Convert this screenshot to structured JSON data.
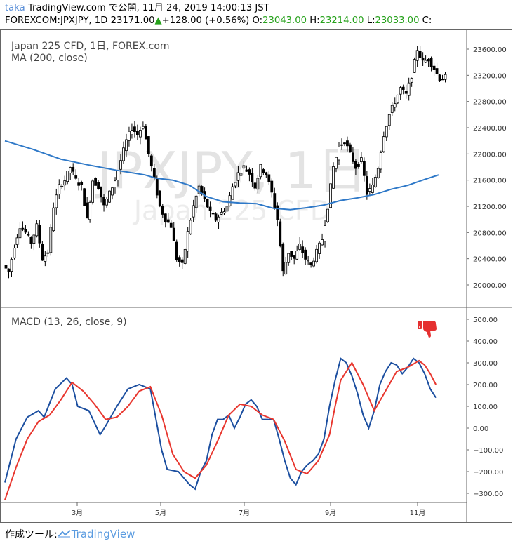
{
  "header": {
    "author": "taka",
    "line1_rest": " TradingView.com で公開, 11月 24, 2019 14:00:13 JST",
    "symbol": "FOREXCOM:JPXJPY, 1D",
    "last_price": "23171.00",
    "change_arrow": "▲",
    "change": "+128.00 (+0.56%)",
    "open_label": "O:",
    "open": "23043.00",
    "high_label": "H:",
    "high": "23214.00",
    "low_label": "L:",
    "low": "23033.00",
    "close_label": "C:"
  },
  "main_pane": {
    "title": "Japan 225 CFD, 1日, FOREX.com",
    "ma_label": "MA (200, close)",
    "watermark_symbol": "JPXJPY, 1日",
    "watermark_name": "Japan 225 CFD",
    "price_ticks": [
      "23600.00",
      "23200.00",
      "22800.00",
      "22400.00",
      "22000.00",
      "21600.00",
      "21200.00",
      "20800.00",
      "20400.00",
      "20000.00"
    ]
  },
  "macd_pane": {
    "label": "MACD (13, 26, close, 9)",
    "ticks": [
      "500.00",
      "400.00",
      "300.00",
      "200.00",
      "100.00",
      "0.00",
      "−100.00",
      "−200.00",
      "−300.00"
    ],
    "signal_icon": "thumbs-down-icon"
  },
  "time_axis": {
    "labels": [
      "3月",
      "5月",
      "7月",
      "9月",
      "11月"
    ]
  },
  "footer": {
    "prefix": "作成ツール:",
    "brand": "TradingView"
  },
  "colors": {
    "candle": "#000000",
    "ma": "#2f79c8",
    "macd": "#1c4fa0",
    "signal": "#e8362e",
    "value_green": "#26a11b",
    "thumbs_down": "#e53030"
  },
  "chart_data": {
    "type": "candlestick",
    "price_range": [
      19850,
      23850
    ],
    "macd_range": [
      -330,
      530
    ],
    "price_path": [
      [
        0,
        20300
      ],
      [
        2,
        20200
      ],
      [
        4,
        20600
      ],
      [
        6,
        20900
      ],
      [
        8,
        20800
      ],
      [
        10,
        20650
      ],
      [
        12,
        20900
      ],
      [
        14,
        20400
      ],
      [
        16,
        20500
      ],
      [
        18,
        21200
      ],
      [
        20,
        21500
      ],
      [
        22,
        21600
      ],
      [
        24,
        21800
      ],
      [
        26,
        21600
      ],
      [
        28,
        21500
      ],
      [
        30,
        21000
      ],
      [
        32,
        21600
      ],
      [
        34,
        21500
      ],
      [
        36,
        21200
      ],
      [
        38,
        21400
      ],
      [
        40,
        21600
      ],
      [
        42,
        21900
      ],
      [
        44,
        22200
      ],
      [
        46,
        22400
      ],
      [
        48,
        22300
      ],
      [
        50,
        22450
      ],
      [
        52,
        22000
      ],
      [
        54,
        21600
      ],
      [
        56,
        21200
      ],
      [
        58,
        21000
      ],
      [
        60,
        20900
      ],
      [
        62,
        20400
      ],
      [
        64,
        20300
      ],
      [
        66,
        20800
      ],
      [
        68,
        21200
      ],
      [
        70,
        21500
      ],
      [
        72,
        21300
      ],
      [
        74,
        21100
      ],
      [
        76,
        21000
      ],
      [
        78,
        21100
      ],
      [
        80,
        21200
      ],
      [
        82,
        21500
      ],
      [
        84,
        21700
      ],
      [
        86,
        21800
      ],
      [
        88,
        21700
      ],
      [
        90,
        21500
      ],
      [
        92,
        21800
      ],
      [
        94,
        21700
      ],
      [
        96,
        21400
      ],
      [
        98,
        21000
      ],
      [
        100,
        20200
      ],
      [
        102,
        20500
      ],
      [
        104,
        20400
      ],
      [
        106,
        20600
      ],
      [
        108,
        20400
      ],
      [
        110,
        20300
      ],
      [
        112,
        20500
      ],
      [
        114,
        20700
      ],
      [
        116,
        21200
      ],
      [
        118,
        21800
      ],
      [
        120,
        22100
      ],
      [
        122,
        22200
      ],
      [
        124,
        22000
      ],
      [
        126,
        21800
      ],
      [
        128,
        21900
      ],
      [
        130,
        21400
      ],
      [
        132,
        21500
      ],
      [
        134,
        21800
      ],
      [
        136,
        22300
      ],
      [
        138,
        22600
      ],
      [
        140,
        22800
      ],
      [
        142,
        23000
      ],
      [
        144,
        22900
      ],
      [
        146,
        23200
      ],
      [
        148,
        23600
      ],
      [
        150,
        23400
      ],
      [
        152,
        23450
      ],
      [
        154,
        23300
      ],
      [
        156,
        23150
      ],
      [
        158,
        23171
      ]
    ],
    "ma_path": [
      [
        0,
        22200
      ],
      [
        10,
        22070
      ],
      [
        20,
        21920
      ],
      [
        30,
        21830
      ],
      [
        40,
        21750
      ],
      [
        50,
        21680
      ],
      [
        54,
        21630
      ],
      [
        60,
        21600
      ],
      [
        66,
        21520
      ],
      [
        72,
        21350
      ],
      [
        78,
        21270
      ],
      [
        84,
        21250
      ],
      [
        90,
        21240
      ],
      [
        96,
        21170
      ],
      [
        102,
        21150
      ],
      [
        108,
        21180
      ],
      [
        114,
        21220
      ],
      [
        120,
        21290
      ],
      [
        126,
        21330
      ],
      [
        132,
        21380
      ],
      [
        138,
        21460
      ],
      [
        144,
        21520
      ],
      [
        150,
        21610
      ],
      [
        155,
        21680
      ]
    ],
    "macd_path": [
      [
        0,
        -250
      ],
      [
        4,
        -50
      ],
      [
        8,
        50
      ],
      [
        12,
        80
      ],
      [
        14,
        50
      ],
      [
        18,
        180
      ],
      [
        22,
        230
      ],
      [
        24,
        200
      ],
      [
        26,
        100
      ],
      [
        30,
        80
      ],
      [
        34,
        -30
      ],
      [
        36,
        10
      ],
      [
        40,
        100
      ],
      [
        44,
        180
      ],
      [
        48,
        200
      ],
      [
        52,
        180
      ],
      [
        56,
        -100
      ],
      [
        58,
        -190
      ],
      [
        62,
        -200
      ],
      [
        66,
        -260
      ],
      [
        68,
        -280
      ],
      [
        70,
        -200
      ],
      [
        72,
        -150
      ],
      [
        74,
        -30
      ],
      [
        76,
        40
      ],
      [
        78,
        40
      ],
      [
        80,
        60
      ],
      [
        82,
        0
      ],
      [
        84,
        50
      ],
      [
        86,
        110
      ],
      [
        88,
        130
      ],
      [
        90,
        100
      ],
      [
        92,
        40
      ],
      [
        94,
        40
      ],
      [
        96,
        40
      ],
      [
        98,
        -50
      ],
      [
        100,
        -150
      ],
      [
        102,
        -230
      ],
      [
        104,
        -260
      ],
      [
        106,
        -200
      ],
      [
        108,
        -170
      ],
      [
        110,
        -150
      ],
      [
        112,
        -120
      ],
      [
        114,
        -50
      ],
      [
        116,
        100
      ],
      [
        118,
        220
      ],
      [
        120,
        320
      ],
      [
        122,
        300
      ],
      [
        124,
        240
      ],
      [
        126,
        160
      ],
      [
        128,
        60
      ],
      [
        130,
        0
      ],
      [
        132,
        80
      ],
      [
        134,
        200
      ],
      [
        136,
        260
      ],
      [
        138,
        300
      ],
      [
        140,
        290
      ],
      [
        142,
        250
      ],
      [
        144,
        280
      ],
      [
        146,
        320
      ],
      [
        148,
        300
      ],
      [
        150,
        250
      ],
      [
        152,
        180
      ],
      [
        154,
        140
      ]
    ],
    "signal_path": [
      [
        0,
        -330
      ],
      [
        4,
        -180
      ],
      [
        8,
        -50
      ],
      [
        12,
        30
      ],
      [
        16,
        60
      ],
      [
        20,
        130
      ],
      [
        24,
        210
      ],
      [
        28,
        170
      ],
      [
        32,
        110
      ],
      [
        36,
        40
      ],
      [
        40,
        50
      ],
      [
        44,
        100
      ],
      [
        48,
        170
      ],
      [
        52,
        190
      ],
      [
        56,
        60
      ],
      [
        60,
        -120
      ],
      [
        64,
        -200
      ],
      [
        68,
        -230
      ],
      [
        72,
        -170
      ],
      [
        76,
        -60
      ],
      [
        80,
        60
      ],
      [
        84,
        110
      ],
      [
        88,
        100
      ],
      [
        92,
        60
      ],
      [
        96,
        40
      ],
      [
        100,
        -60
      ],
      [
        104,
        -190
      ],
      [
        108,
        -210
      ],
      [
        112,
        -150
      ],
      [
        116,
        -30
      ],
      [
        118,
        100
      ],
      [
        120,
        220
      ],
      [
        124,
        300
      ],
      [
        128,
        200
      ],
      [
        132,
        80
      ],
      [
        136,
        170
      ],
      [
        140,
        260
      ],
      [
        144,
        280
      ],
      [
        148,
        310
      ],
      [
        150,
        290
      ],
      [
        152,
        250
      ],
      [
        154,
        200
      ]
    ]
  }
}
